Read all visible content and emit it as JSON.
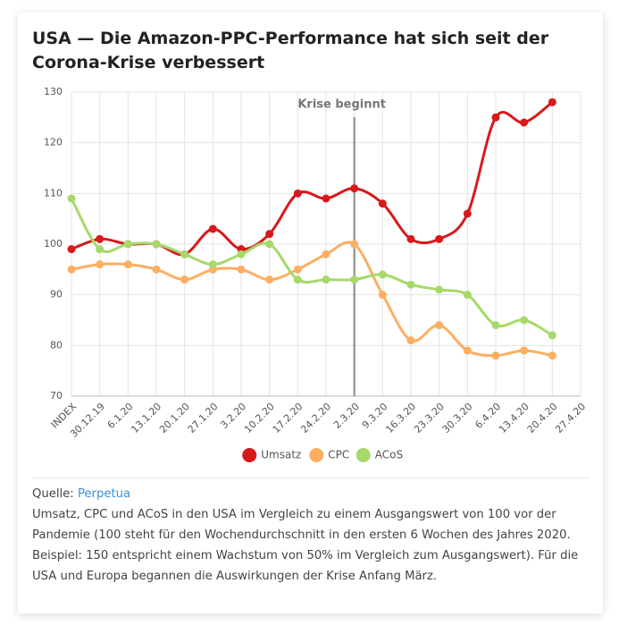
{
  "chart_data": {
    "type": "line",
    "title": "USA — Die Amazon-PPC-Performance hat sich seit der Corona-Krise verbessert",
    "categories": [
      "INDEX",
      "30.12.19",
      "6.1.20",
      "13.1.20",
      "20.1.20",
      "27.1.20",
      "3.2.20",
      "10.2.20",
      "17.2.20",
      "24.2.20",
      "2.3.20",
      "9.3.20",
      "16.3.20",
      "23.3.20",
      "30.3.20",
      "6.4.20",
      "13.4.20",
      "20.4.20",
      "27.4.20"
    ],
    "series": [
      {
        "name": "Umsatz",
        "color": "#d7191c",
        "values": [
          99,
          101,
          100,
          100,
          98,
          103,
          99,
          102,
          110,
          109,
          111,
          108,
          101,
          101,
          106,
          125,
          124,
          128,
          null
        ]
      },
      {
        "name": "CPC",
        "color": "#fdae61",
        "values": [
          95,
          96,
          96,
          95,
          93,
          95,
          95,
          93,
          95,
          98,
          100,
          90,
          81,
          84,
          79,
          78,
          79,
          78,
          null
        ]
      },
      {
        "name": "ACoS",
        "color": "#a6d96a",
        "values": [
          109,
          99,
          100,
          100,
          98,
          96,
          98,
          100,
          93,
          93,
          93,
          94,
          92,
          91,
          90,
          84,
          85,
          82,
          null
        ]
      }
    ],
    "ylim": [
      70,
      130
    ],
    "yticks": [
      70,
      80,
      90,
      100,
      110,
      120,
      130
    ],
    "grid": true,
    "legend": "bottom",
    "annotation": {
      "text": "Krise beginnt",
      "x": "2.3.20"
    }
  },
  "source_label": "Quelle:",
  "source": "Perpetua",
  "note": "Umsatz, CPC und ACoS in den USA im Vergleich zu einem Ausgangswert von 100 vor der Pandemie (100 steht für den Wochendurchschnitt in den ersten 6 Wochen des Jahres 2020. Beispiel: 150 entspricht einem Wachstum von 50% im Vergleich zum Ausgangswert). Für die USA und Europa begannen die Auswirkungen der Krise Anfang März."
}
